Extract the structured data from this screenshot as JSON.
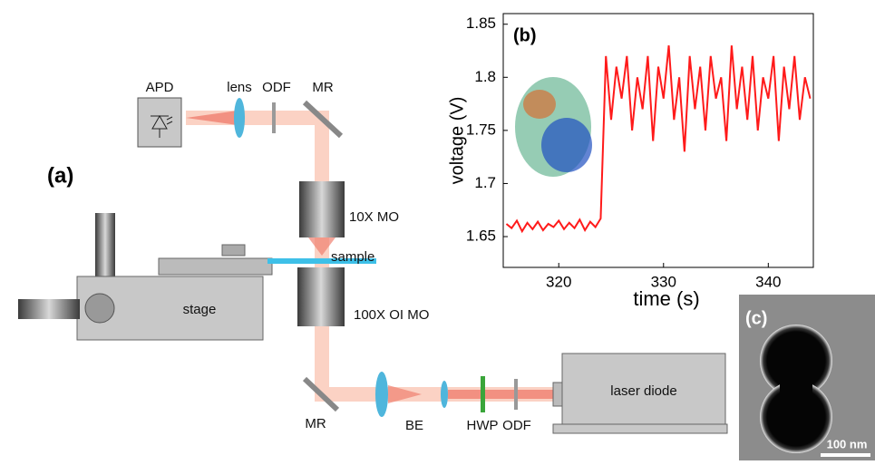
{
  "diagram": {
    "panel_label": "(a)",
    "labels": [
      "APD",
      "lens",
      "ODF",
      "MR",
      "10X MO",
      "sample",
      "stage",
      "100X OI MO",
      "MR",
      "BE",
      "HWP",
      "ODF",
      "laser diode"
    ]
  },
  "chart_data": {
    "type": "line",
    "panel_label": "(b)",
    "xlabel": "time (s)",
    "ylabel": "voltage (V)",
    "color": "#ff1a1a",
    "x": [
      315,
      315.5,
      316,
      316.5,
      317,
      317.5,
      318,
      318.5,
      319,
      319.5,
      320,
      320.5,
      321,
      321.5,
      322,
      322.5,
      323,
      323.5,
      324,
      324.5,
      325,
      325.5,
      326,
      326.5,
      327,
      327.5,
      328,
      328.5,
      329,
      329.5,
      330,
      330.5,
      331,
      331.5,
      332,
      332.5,
      333,
      333.5,
      334,
      334.5,
      335,
      335.5,
      336,
      336.5,
      337,
      337.5,
      338,
      338.5,
      339,
      339.5,
      340,
      340.5,
      341,
      341.5,
      342,
      342.5,
      343,
      343.5,
      344
    ],
    "values": [
      1.662,
      1.658,
      1.665,
      1.655,
      1.663,
      1.657,
      1.664,
      1.656,
      1.662,
      1.659,
      1.665,
      1.657,
      1.663,
      1.658,
      1.666,
      1.656,
      1.664,
      1.659,
      1.667,
      1.82,
      1.76,
      1.81,
      1.78,
      1.82,
      1.75,
      1.8,
      1.77,
      1.82,
      1.74,
      1.81,
      1.78,
      1.83,
      1.76,
      1.8,
      1.73,
      1.82,
      1.77,
      1.81,
      1.75,
      1.82,
      1.78,
      1.8,
      1.74,
      1.83,
      1.77,
      1.81,
      1.76,
      1.82,
      1.75,
      1.8,
      1.78,
      1.82,
      1.74,
      1.81,
      1.77,
      1.82,
      1.76,
      1.8,
      1.78
    ],
    "xlim": [
      314.7,
      344.3
    ],
    "ylim": [
      1.621,
      1.86
    ],
    "xticks": [
      320,
      330,
      340
    ],
    "yticks": [
      1.65,
      1.7,
      1.75,
      1.8,
      1.85
    ]
  },
  "image": {
    "panel_label": "(c)",
    "scale_bar": "100 nm"
  }
}
